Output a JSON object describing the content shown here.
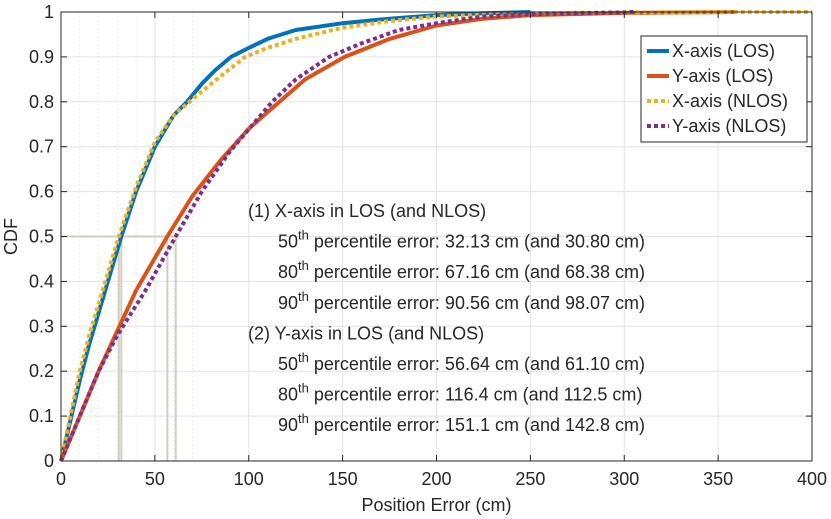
{
  "chart_data": {
    "type": "line",
    "title": "",
    "xlabel": "Position Error (cm)",
    "ylabel": "CDF",
    "xlim": [
      0,
      400
    ],
    "ylim": [
      0,
      1
    ],
    "xticks": [
      0,
      50,
      100,
      150,
      200,
      250,
      300,
      350,
      400
    ],
    "yticks": [
      0,
      0.1,
      0.2,
      0.3,
      0.4,
      0.5,
      0.6,
      0.7,
      0.8,
      0.9,
      1
    ],
    "minor_xticks": [
      10,
      20,
      30,
      40,
      60,
      70
    ],
    "grid": true,
    "legend_position": "top-right",
    "series": [
      {
        "name": "X-axis (LOS)",
        "color": "#0072BD",
        "style": "solid",
        "x": [
          0,
          5,
          10,
          15,
          20,
          25,
          32.13,
          40,
          50,
          60,
          67.16,
          75,
          82,
          90.56,
          100,
          110,
          125,
          150,
          175,
          200,
          225,
          250
        ],
        "y": [
          0,
          0.09,
          0.18,
          0.26,
          0.33,
          0.4,
          0.5,
          0.6,
          0.7,
          0.77,
          0.8,
          0.84,
          0.87,
          0.9,
          0.92,
          0.94,
          0.96,
          0.975,
          0.985,
          0.993,
          0.997,
          1.0
        ]
      },
      {
        "name": "Y-axis (LOS)",
        "color": "#D95319",
        "style": "solid",
        "x": [
          0,
          10,
          20,
          30,
          40,
          56.64,
          70,
          85,
          100,
          116.4,
          130,
          151.1,
          175,
          200,
          225,
          250,
          300,
          360
        ],
        "y": [
          0,
          0.1,
          0.2,
          0.29,
          0.38,
          0.5,
          0.59,
          0.67,
          0.74,
          0.8,
          0.85,
          0.9,
          0.94,
          0.97,
          0.985,
          0.993,
          0.998,
          1.0
        ]
      },
      {
        "name": "X-axis (NLOS)",
        "color": "#EDB120",
        "style": "dotted",
        "x": [
          0,
          5,
          10,
          15,
          20,
          30.8,
          40,
          50,
          60,
          68.38,
          80,
          98.07,
          110,
          125,
          150,
          175,
          200,
          250,
          300,
          400
        ],
        "y": [
          0,
          0.1,
          0.2,
          0.28,
          0.35,
          0.5,
          0.61,
          0.71,
          0.77,
          0.8,
          0.84,
          0.9,
          0.92,
          0.94,
          0.965,
          0.98,
          0.99,
          0.997,
          0.999,
          1.0
        ]
      },
      {
        "name": "Y-axis (NLOS)",
        "color": "#7E2F8E",
        "style": "dotted",
        "x": [
          0,
          10,
          20,
          30,
          45,
          61.1,
          75,
          90,
          112.5,
          125,
          142.8,
          160,
          180,
          200,
          225,
          250,
          300,
          305
        ],
        "y": [
          0,
          0.1,
          0.2,
          0.28,
          0.38,
          0.5,
          0.6,
          0.69,
          0.8,
          0.85,
          0.9,
          0.93,
          0.96,
          0.975,
          0.99,
          0.995,
          0.999,
          1.0
        ]
      }
    ],
    "reference_lines": {
      "level": 0.5,
      "x": [
        32.13,
        56.64,
        61.1,
        30.8
      ]
    },
    "annotation": [
      {
        "prefix": "(1) X-axis in LOS (and NLOS)",
        "sup": "",
        "suffix": "",
        "indent": false
      },
      {
        "prefix": "50",
        "sup": "th",
        "suffix": " percentile error: 32.13 cm (and 30.80 cm)",
        "indent": true
      },
      {
        "prefix": "80",
        "sup": "th",
        "suffix": " percentile error: 67.16 cm (and 68.38 cm)",
        "indent": true
      },
      {
        "prefix": "90",
        "sup": "th",
        "suffix": " percentile error: 90.56 cm (and 98.07 cm)",
        "indent": true
      },
      {
        "prefix": "(2) Y-axis  in LOS (and NLOS)",
        "sup": "",
        "suffix": "",
        "indent": false
      },
      {
        "prefix": "50",
        "sup": "th",
        "suffix": " percentile error: 56.64 cm (and 61.10 cm)",
        "indent": true
      },
      {
        "prefix": "80",
        "sup": "th",
        "suffix": " percentile error: 116.4 cm (and 112.5 cm)",
        "indent": true
      },
      {
        "prefix": "90",
        "sup": "th",
        "suffix": " percentile error: 151.1 cm (and 142.8 cm)",
        "indent": true
      }
    ]
  }
}
